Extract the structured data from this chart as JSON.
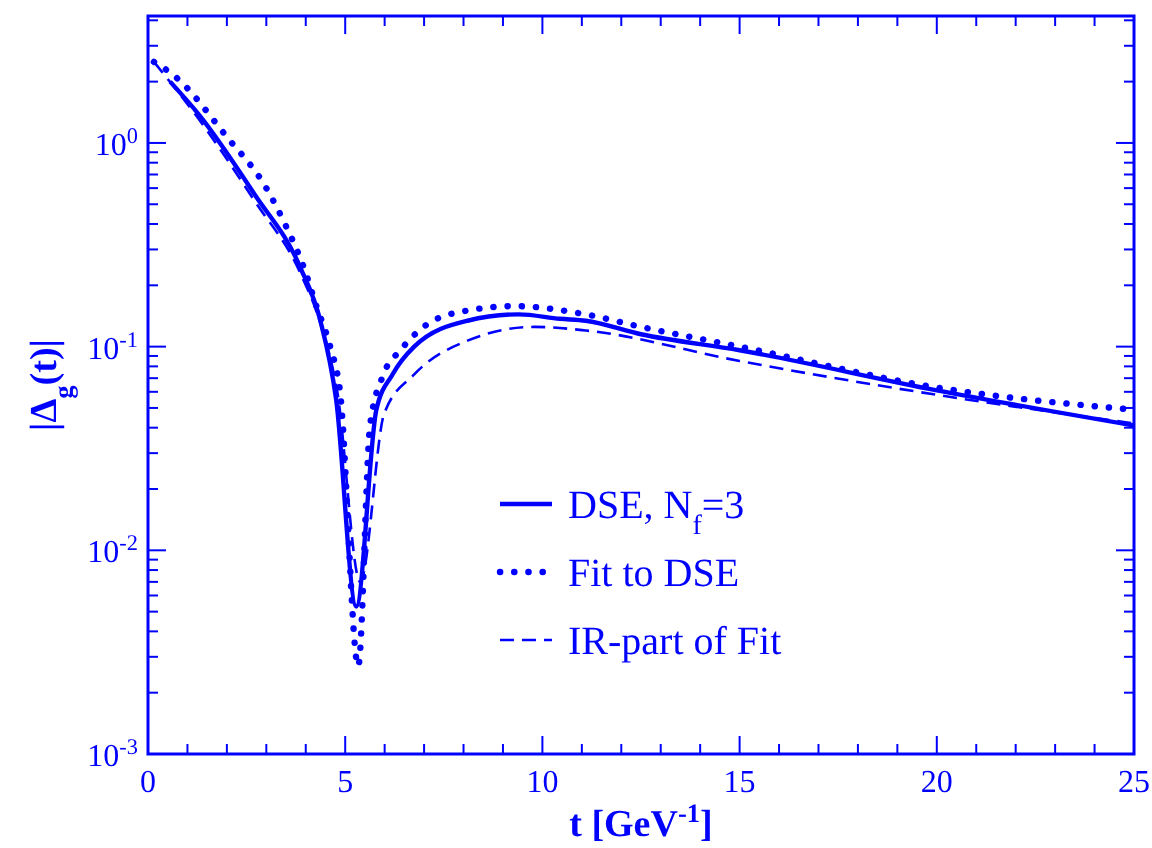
{
  "chart_data": {
    "type": "line",
    "xlabel": "t [GeV$^{-1}$]",
    "ylabel": "|Δ$_{g}$(t)|",
    "log": "y",
    "legend": "bottom",
    "grid": false,
    "xlim": [
      0,
      25
    ],
    "ylim": [
      0.001,
      4.2
    ],
    "xticks": [
      0,
      {
        "value": 1,
        "label": null
      },
      {
        "value": 2,
        "label": null
      },
      {
        "value": 3,
        "label": null
      },
      {
        "value": 4,
        "label": null
      },
      5,
      {
        "value": 6,
        "label": null
      },
      {
        "value": 7,
        "label": null
      },
      {
        "value": 8,
        "label": null
      },
      {
        "value": 9,
        "label": null
      },
      10,
      {
        "value": 11,
        "label": null
      },
      {
        "value": 12,
        "label": null
      },
      {
        "value": 13,
        "label": null
      },
      {
        "value": 14,
        "label": null
      },
      15,
      {
        "value": 16,
        "label": null
      },
      {
        "value": 17,
        "label": null
      },
      {
        "value": 18,
        "label": null
      },
      {
        "value": 19,
        "label": null
      },
      20,
      {
        "value": 21,
        "label": null
      },
      {
        "value": 22,
        "label": null
      },
      {
        "value": 23,
        "label": null
      },
      {
        "value": 24,
        "label": null
      },
      25
    ],
    "yticks": [
      {
        "value": 0.001,
        "label": "10$^{-3}$"
      },
      {
        "value": 0.002,
        "label": null
      },
      {
        "value": 0.003,
        "label": null
      },
      {
        "value": 0.004,
        "label": null
      },
      {
        "value": 0.005,
        "label": null
      },
      {
        "value": 0.006,
        "label": null
      },
      {
        "value": 0.007,
        "label": null
      },
      {
        "value": 0.008,
        "label": null
      },
      {
        "value": 0.009,
        "label": null
      },
      {
        "value": 0.01,
        "label": "10$^{-2}$"
      },
      {
        "value": 0.02,
        "label": null
      },
      {
        "value": 0.03,
        "label": null
      },
      {
        "value": 0.04,
        "label": null
      },
      {
        "value": 0.05,
        "label": null
      },
      {
        "value": 0.06,
        "label": null
      },
      {
        "value": 0.07,
        "label": null
      },
      {
        "value": 0.08,
        "label": null
      },
      {
        "value": 0.09,
        "label": null
      },
      {
        "value": 0.1,
        "label": "10$^{-1}$"
      },
      {
        "value": 0.2,
        "label": null
      },
      {
        "value": 0.3,
        "label": null
      },
      {
        "value": 0.4,
        "label": null
      },
      {
        "value": 0.5,
        "label": null
      },
      {
        "value": 0.6,
        "label": null
      },
      {
        "value": 0.7,
        "label": null
      },
      {
        "value": 0.8,
        "label": null
      },
      {
        "value": 0.9,
        "label": null
      },
      {
        "value": 1,
        "label": "10$^{0}$"
      },
      {
        "value": 2,
        "label": null
      },
      {
        "value": 3,
        "label": null
      },
      {
        "value": 4,
        "label": null
      }
    ],
    "series": [
      {
        "name": "DSE, N$_{f}$=3",
        "color": "#0000ff",
        "line_style": "solid",
        "x": [
          0.56,
          1.3,
          2.7,
          3.86,
          4.37,
          4.77,
          5.28,
          5.79,
          6.2,
          6.75,
          8.1,
          9.4,
          10.45,
          11.1,
          12.5,
          15,
          20,
          25
        ],
        "values": [
          2.0,
          1.37,
          0.56,
          0.245,
          0.134,
          0.055,
          0.0053,
          0.049,
          0.073,
          0.1,
          0.134,
          0.144,
          0.137,
          0.134,
          0.115,
          0.096,
          0.061,
          0.041
        ]
      },
      {
        "name": "Fit to DSE",
        "color": "#0000ff",
        "line_style": "dotted",
        "x": [
          0.15,
          0.65,
          2.0,
          3.0,
          3.5,
          3.95,
          4.27,
          4.62,
          4.87,
          5.33,
          5.63,
          5.97,
          6.4,
          7.06,
          8.07,
          9.3,
          11.1,
          12.5,
          15,
          20,
          25
        ],
        "values": [
          2.5,
          2.15,
          1.07,
          0.6,
          0.39,
          0.245,
          0.158,
          0.1,
          0.06,
          0.0027,
          0.041,
          0.073,
          0.096,
          0.128,
          0.15,
          0.158,
          0.144,
          0.125,
          0.1,
          0.063,
          0.049
        ]
      },
      {
        "name": "IR-part of Fit",
        "color": "#0000ff",
        "line_style": "dashed",
        "x": [
          0.15,
          1.3,
          2.7,
          3.86,
          4.37,
          4.8,
          5.38,
          5.99,
          6.75,
          8.1,
          9.8,
          11.1,
          15,
          20,
          25
        ],
        "values": [
          2.5,
          1.3,
          0.52,
          0.23,
          0.13,
          0.06,
          0.007,
          0.047,
          0.073,
          0.107,
          0.125,
          0.12,
          0.085,
          0.058,
          0.042
        ]
      }
    ]
  }
}
